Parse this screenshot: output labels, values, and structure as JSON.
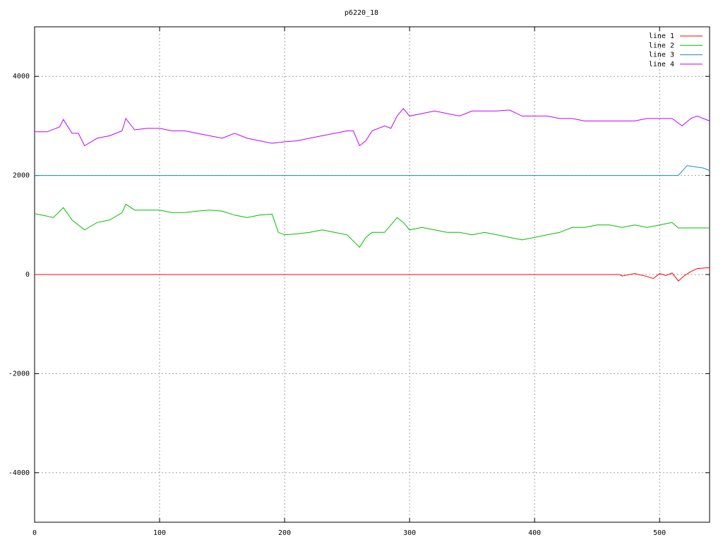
{
  "chart_data": {
    "type": "line",
    "title": "p6220_18",
    "xlim": [
      0,
      540
    ],
    "ylim": [
      -5000,
      5000
    ],
    "xticks": [
      0,
      100,
      200,
      300,
      400,
      500
    ],
    "yticks": [
      -4000,
      -2000,
      0,
      2000,
      4000
    ],
    "grid": true,
    "legend": "top-right",
    "series": [
      {
        "name": "line 1",
        "color": "#ff0000",
        "x": [
          0,
          100,
          200,
          300,
          400,
          468,
          470,
          480,
          490,
          495,
          500,
          505,
          510,
          515,
          520,
          525,
          530,
          535,
          540
        ],
        "values": [
          0,
          0,
          0,
          0,
          0,
          0,
          -30,
          20,
          -40,
          -80,
          20,
          -20,
          30,
          -130,
          -20,
          60,
          120,
          130,
          140
        ]
      },
      {
        "name": "line 2",
        "color": "#00c000",
        "x": [
          0,
          10,
          15,
          23,
          30,
          40,
          50,
          60,
          70,
          73,
          80,
          90,
          100,
          110,
          120,
          130,
          140,
          150,
          160,
          170,
          180,
          190,
          195,
          200,
          210,
          220,
          230,
          240,
          250,
          260,
          265,
          270,
          280,
          290,
          295,
          300,
          310,
          320,
          330,
          340,
          350,
          360,
          370,
          380,
          390,
          400,
          410,
          420,
          430,
          440,
          450,
          460,
          470,
          480,
          490,
          500,
          510,
          515,
          540
        ],
        "values": [
          1230,
          1180,
          1150,
          1350,
          1100,
          900,
          1050,
          1100,
          1250,
          1420,
          1300,
          1300,
          1300,
          1250,
          1250,
          1280,
          1300,
          1280,
          1200,
          1150,
          1200,
          1220,
          850,
          800,
          820,
          850,
          900,
          850,
          800,
          550,
          750,
          850,
          850,
          1150,
          1050,
          900,
          950,
          900,
          850,
          850,
          800,
          850,
          800,
          750,
          700,
          750,
          800,
          850,
          950,
          950,
          1000,
          1000,
          950,
          1000,
          950,
          1000,
          1050,
          940,
          940
        ]
      },
      {
        "name": "line 3",
        "color": "#1a8cbf",
        "x": [
          0,
          515,
          522,
          535,
          540
        ],
        "values": [
          2000,
          2000,
          2200,
          2150,
          2100
        ]
      },
      {
        "name": "line 4",
        "color": "#c000ff",
        "x": [
          0,
          10,
          20,
          23,
          30,
          35,
          40,
          50,
          60,
          70,
          73,
          80,
          90,
          100,
          110,
          120,
          130,
          140,
          150,
          160,
          170,
          180,
          190,
          200,
          210,
          220,
          230,
          240,
          250,
          255,
          260,
          265,
          270,
          280,
          285,
          290,
          295,
          300,
          310,
          320,
          330,
          340,
          350,
          360,
          370,
          380,
          390,
          400,
          410,
          420,
          430,
          440,
          450,
          460,
          470,
          480,
          490,
          500,
          510,
          518,
          525,
          530,
          540
        ],
        "values": [
          2880,
          2880,
          2980,
          3130,
          2850,
          2850,
          2600,
          2750,
          2800,
          2900,
          3150,
          2920,
          2950,
          2950,
          2900,
          2900,
          2850,
          2800,
          2750,
          2850,
          2750,
          2700,
          2650,
          2680,
          2700,
          2750,
          2800,
          2850,
          2900,
          2900,
          2600,
          2700,
          2900,
          3000,
          2950,
          3200,
          3350,
          3200,
          3250,
          3300,
          3250,
          3200,
          3300,
          3300,
          3300,
          3320,
          3200,
          3200,
          3200,
          3150,
          3150,
          3100,
          3100,
          3100,
          3100,
          3100,
          3150,
          3150,
          3150,
          3000,
          3150,
          3200,
          3100
        ]
      }
    ]
  }
}
